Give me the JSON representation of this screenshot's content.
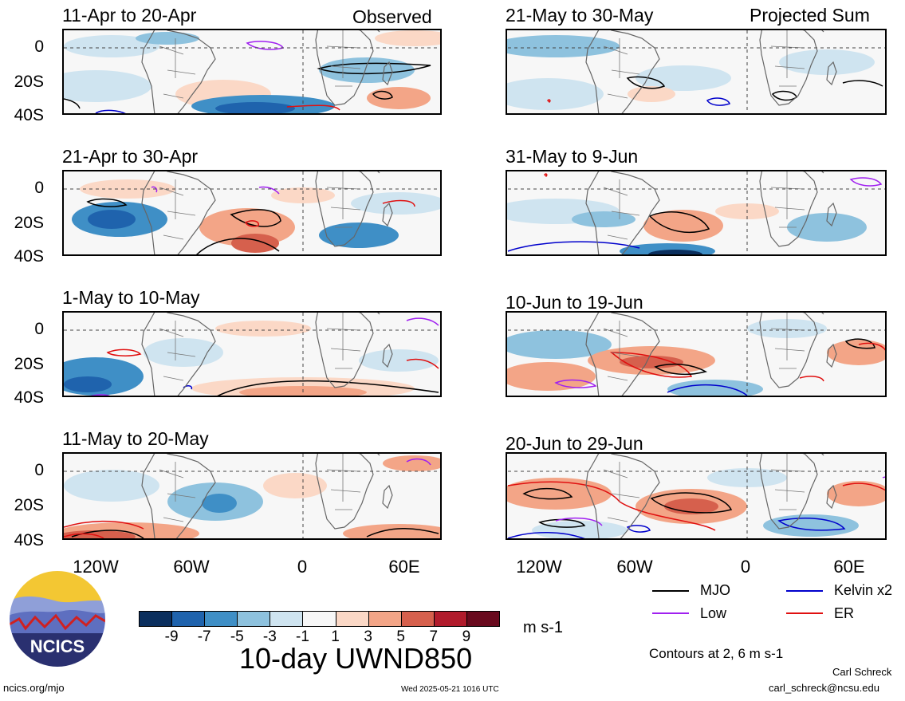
{
  "left_panels": [
    {
      "title": "11-Apr to 20-Apr",
      "tag": "Observed"
    },
    {
      "title": "21-Apr to 30-Apr",
      "tag": ""
    },
    {
      "title": "1-May to 10-May",
      "tag": ""
    },
    {
      "title": "11-May to 20-May",
      "tag": ""
    }
  ],
  "right_panels": [
    {
      "title": "21-May to 30-May",
      "tag": "Projected Sum"
    },
    {
      "title": "31-May to 9-Jun",
      "tag": ""
    },
    {
      "title": "10-Jun to 19-Jun",
      "tag": ""
    },
    {
      "title": "20-Jun to 29-Jun",
      "tag": ""
    }
  ],
  "y_labels": [
    "0",
    "20S",
    "40S"
  ],
  "x_labels": [
    "120W",
    "60W",
    "0",
    "60E"
  ],
  "colorbar": {
    "colors": [
      "#0b2f5e",
      "#1f63ad",
      "#3f8fc6",
      "#8ec2de",
      "#cfe4f0",
      "#f7f7f7",
      "#fbd8c6",
      "#f3a587",
      "#d6604d",
      "#b11b2c",
      "#690a1e"
    ],
    "ticks": [
      "-9",
      "-7",
      "-5",
      "-3",
      "-1",
      "1",
      "3",
      "5",
      "7",
      "9"
    ],
    "units": "m s-1",
    "title": "10-day UWND850"
  },
  "legend": [
    {
      "label": "MJO",
      "color": "#000000"
    },
    {
      "label": "Kelvin x2",
      "color": "#0000cc"
    },
    {
      "label": "Low",
      "color": "#a020f0"
    },
    {
      "label": "ER",
      "color": "#e01010"
    }
  ],
  "contours_note": "Contours at 2, 6 m s-1",
  "author": "Carl Schreck",
  "email": "carl_schreck@ncsu.edu",
  "site": "ncics.org/mjo",
  "timestamp": "Wed 2025-05-21 1016 UTC",
  "logo_text": "NCICS"
}
